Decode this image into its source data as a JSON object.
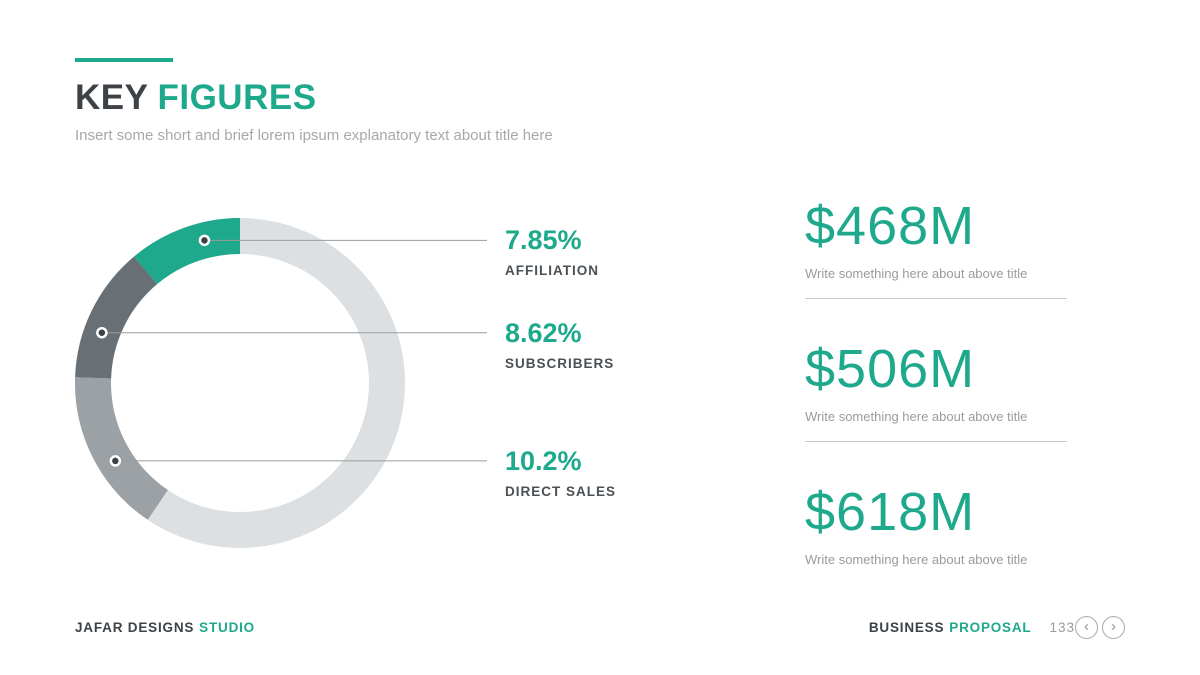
{
  "slide": {
    "title_prefix": "KEY",
    "title_highlight": "FIGURES",
    "subtitle": "Insert some short and brief lorem ipsum explanatory text about title here",
    "accent_color": "#1ea98c"
  },
  "chart_data": {
    "type": "pie",
    "donut": true,
    "legend_position": "right",
    "remainder_color": "#dde0e2",
    "segments": [
      {
        "label": "AFFILIATION",
        "value_pct": 7.85,
        "value_label": "7.85%",
        "color": "#1ea98c",
        "sweep_deg": 40,
        "dot_deg": 14
      },
      {
        "label": "SUBSCRIBERS",
        "value_pct": 8.62,
        "value_label": "8.62%",
        "color": "#697075",
        "sweep_deg": 48,
        "dot_deg": 70
      },
      {
        "label": "DIRECT SALES",
        "value_pct": 10.2,
        "value_label": "10.2%",
        "color": "#9ba1a5",
        "sweep_deg": 58,
        "dot_deg": 122
      }
    ]
  },
  "figures": [
    {
      "amount": "$468M",
      "caption": "Write something here about above title"
    },
    {
      "amount": "$506M",
      "caption": "Write something here about above title"
    },
    {
      "amount": "$618M",
      "caption": "Write something here about above title"
    }
  ],
  "footer": {
    "brand_prefix": "JAFAR DESIGNS",
    "brand_highlight": "STUDIO",
    "doc_prefix": "BUSINESS",
    "doc_highlight": "PROPOSAL",
    "page_number": "133",
    "prev_icon": "‹",
    "next_icon": "›"
  }
}
